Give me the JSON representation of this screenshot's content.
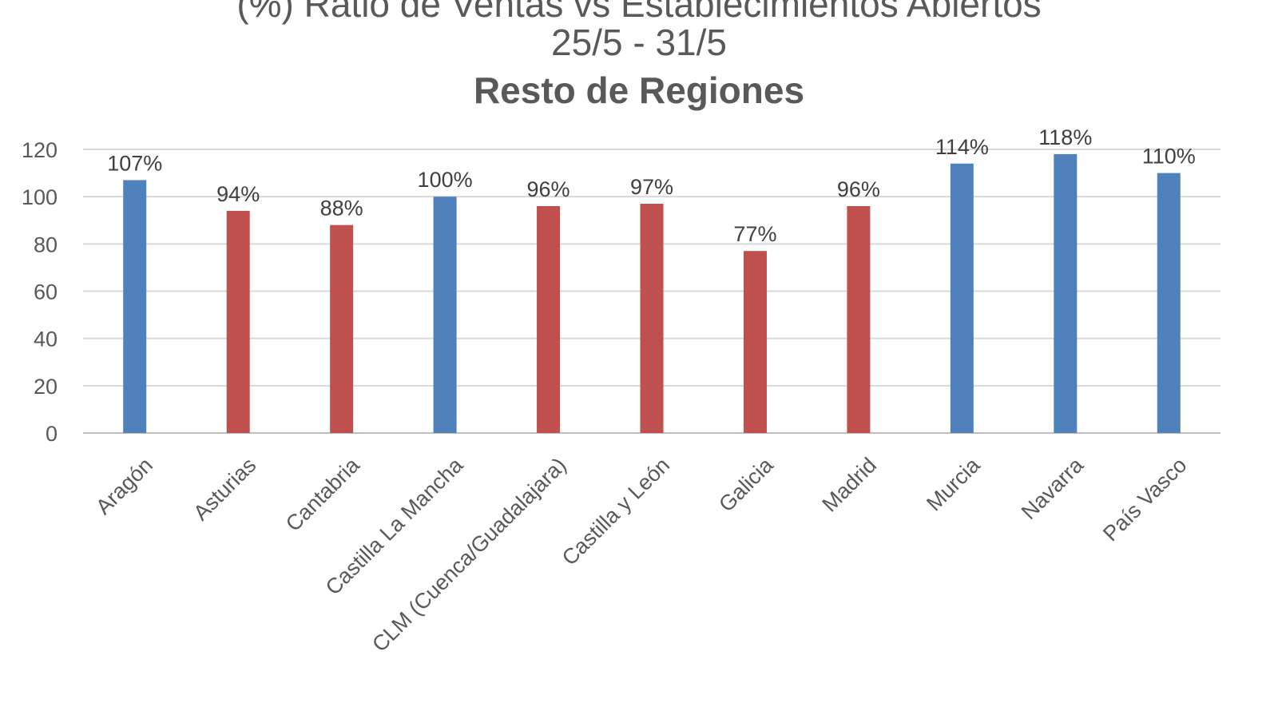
{
  "chart_data": {
    "type": "bar",
    "title": "(%) Ratio de Ventas vs Establecimientos Abiertos",
    "subtitle": "25/5 - 31/5",
    "subtitle2": "Resto de Regiones",
    "categories": [
      "Aragón",
      "Asturias",
      "Cantabria",
      "Castilla La Mancha",
      "CLM (Cuenca/Guadalajara)",
      "Castilla y León",
      "Galicia",
      "Madrid",
      "Murcia",
      "Navarra",
      "País Vasco"
    ],
    "values": [
      107,
      94,
      88,
      100,
      96,
      97,
      77,
      96,
      114,
      118,
      110
    ],
    "data_labels": [
      "107%",
      "94%",
      "88%",
      "100%",
      "96%",
      "97%",
      "77%",
      "96%",
      "114%",
      "118%",
      "110%"
    ],
    "bar_colors": [
      "#4f81bd",
      "#c0504d",
      "#c0504d",
      "#4f81bd",
      "#c0504d",
      "#c0504d",
      "#c0504d",
      "#c0504d",
      "#4f81bd",
      "#4f81bd",
      "#4f81bd"
    ],
    "y_ticks": [
      "0",
      "20",
      "40",
      "60",
      "80",
      "100",
      "120"
    ],
    "ylim": [
      0,
      120
    ],
    "grid": true,
    "legend": "none",
    "xlabel": "",
    "ylabel": ""
  }
}
